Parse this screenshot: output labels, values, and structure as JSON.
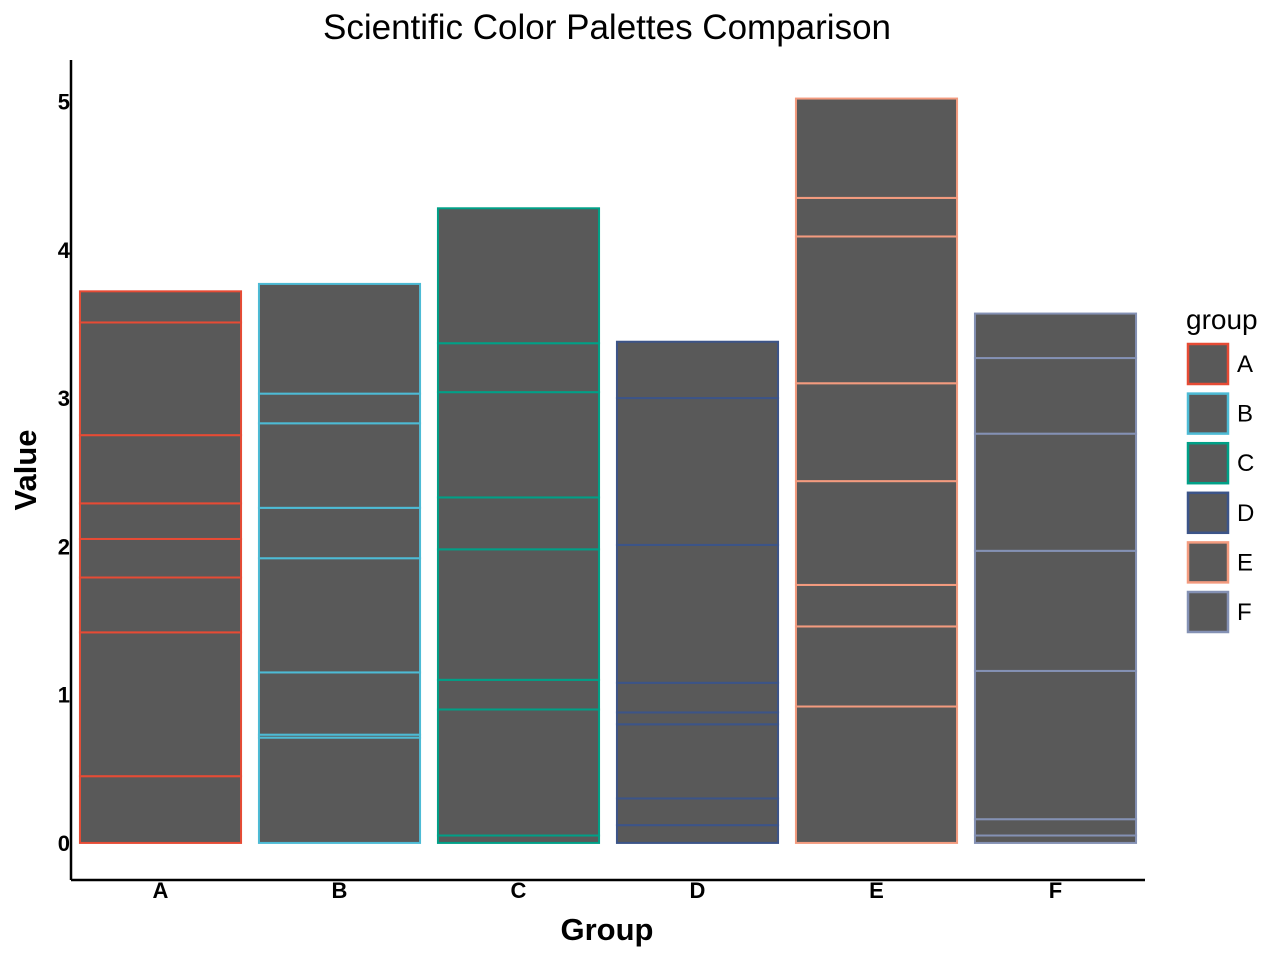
{
  "chart_data": {
    "type": "bar",
    "stacked": true,
    "title": "Scientific Color Palettes Comparison",
    "xlabel": "Group",
    "ylabel": "Value",
    "categories": [
      "A",
      "B",
      "C",
      "D",
      "E",
      "F"
    ],
    "ylim": [
      -0.25,
      5.28
    ],
    "yticks": [
      0,
      1,
      2,
      3,
      4,
      5
    ],
    "grid": false,
    "legend": {
      "title": "group",
      "placement": "right",
      "entries": [
        "A",
        "B",
        "C",
        "D",
        "E",
        "F"
      ]
    },
    "bar_fill": "#595959",
    "palette": {
      "A": "#E64B35",
      "B": "#4DBBD5",
      "C": "#00A087",
      "D": "#3C5488",
      "E": "#F39B7F",
      "F": "#8491B4"
    },
    "segment_boundaries": {
      "A": [
        0,
        0.45,
        1.42,
        1.79,
        2.05,
        2.29,
        2.75,
        3.51,
        3.72
      ],
      "B": [
        0,
        0.71,
        0.73,
        1.15,
        1.92,
        2.26,
        2.83,
        3.03,
        3.77
      ],
      "C": [
        0,
        0.05,
        0.9,
        1.1,
        1.98,
        2.33,
        3.04,
        3.37,
        4.28
      ],
      "D": [
        0,
        0.12,
        0.3,
        0.8,
        0.88,
        1.08,
        2.01,
        3.0,
        3.38
      ],
      "E": [
        0,
        0.92,
        1.46,
        1.74,
        2.44,
        3.1,
        4.09,
        4.35,
        5.02
      ],
      "F": [
        0,
        0.05,
        0.16,
        1.16,
        1.97,
        2.76,
        3.27,
        3.57
      ]
    }
  }
}
